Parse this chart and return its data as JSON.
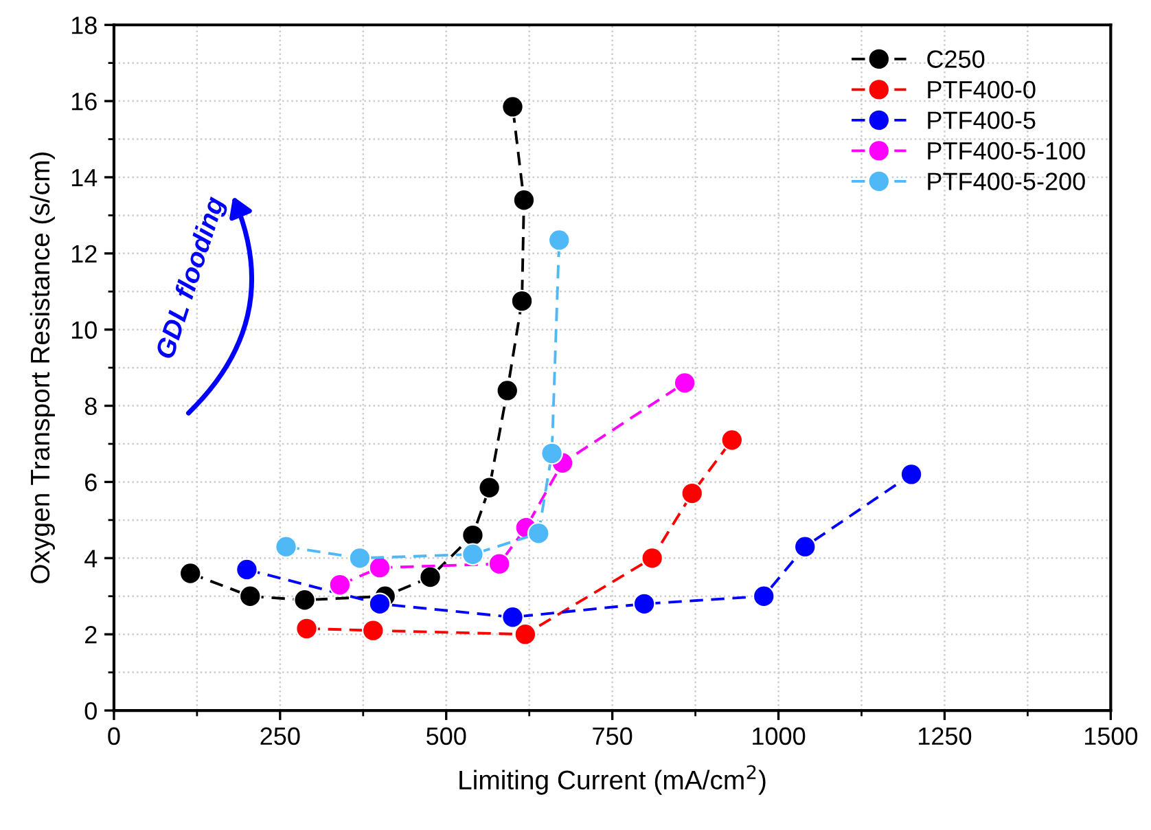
{
  "chart_data": {
    "type": "line",
    "xlabel": "Limiting Current (mA/cm$^{2}$)",
    "ylabel": "Oxygen Transport Resistance (s/cm)",
    "xlim": [
      0,
      1500
    ],
    "xticks": [
      0,
      250,
      500,
      750,
      1000,
      1250,
      1500
    ],
    "ylim": [
      0,
      18
    ],
    "yticks": [
      0,
      2,
      4,
      6,
      8,
      10,
      12,
      14,
      16,
      18
    ],
    "grid": true,
    "legend": "top right",
    "marker": "circle",
    "line_style": "dashed",
    "annotations": [
      "GDL flooding"
    ],
    "series": [
      {
        "name": "C250",
        "color": "#000000",
        "x": [
          115,
          205,
          287,
          408,
          476,
          540,
          565,
          592,
          614,
          617,
          600
        ],
        "values": [
          3.6,
          3.0,
          2.9,
          3.0,
          3.5,
          4.6,
          5.85,
          8.4,
          10.75,
          13.4,
          15.85
        ]
      },
      {
        "name": "PTF400-0",
        "color": "#ff0000",
        "x": [
          290,
          390,
          619,
          810,
          870,
          930
        ],
        "values": [
          2.15,
          2.1,
          2.0,
          4.0,
          5.7,
          7.1
        ]
      },
      {
        "name": "PTF400-5",
        "color": "#0000ff",
        "x": [
          200,
          400,
          600,
          798,
          978,
          1040,
          1200
        ],
        "values": [
          3.7,
          2.8,
          2.45,
          2.8,
          3.0,
          4.3,
          6.2
        ]
      },
      {
        "name": "PTF400-5-100",
        "color": "#ff00ff",
        "x": [
          340,
          400,
          580,
          620,
          675,
          859
        ],
        "values": [
          3.3,
          3.75,
          3.85,
          4.8,
          6.5,
          8.6
        ]
      },
      {
        "name": "PTF400-5-200",
        "color": "#4fb8f7",
        "x": [
          259,
          370,
          540,
          639,
          659,
          670
        ],
        "values": [
          4.3,
          4.0,
          4.1,
          4.65,
          6.75,
          12.35
        ]
      }
    ]
  }
}
